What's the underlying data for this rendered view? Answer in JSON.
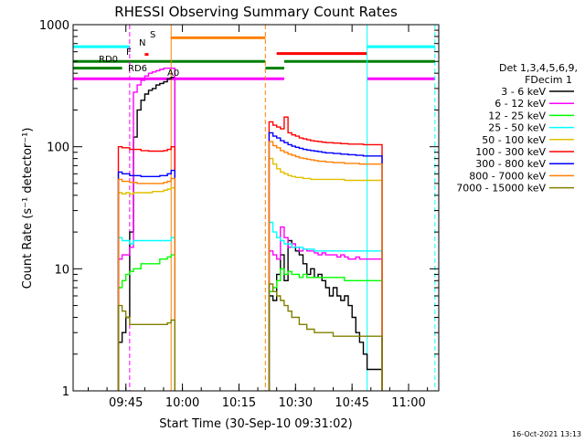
{
  "chart_data": {
    "type": "line",
    "title": "RHESSI Observing Summary Count Rates",
    "xlabel": "Start Time (30-Sep-10 09:31:02)",
    "ylabel": "Count Rate (s⁻¹ detector⁻¹)",
    "y_scale": "log",
    "ylim": [
      1,
      1000
    ],
    "xlim": [
      "09:31",
      "11:08"
    ],
    "x_ticks": [
      "09:45",
      "10:00",
      "10:15",
      "10:30",
      "10:45",
      "11:00"
    ],
    "y_ticks": [
      "1",
      "10",
      "100",
      "1000"
    ],
    "timestamp": "16-Oct-2021 13:13",
    "legend_header": [
      "Det 1,3,4,5,6,9,",
      "FDecim 1"
    ],
    "legend_position": "right",
    "flag_labels": {
      "s": "S",
      "n": "N",
      "f": "F",
      "rd0": "RD0",
      "rd6": "RD6",
      "a0": "A0"
    },
    "flags": [
      {
        "label": "S",
        "color": "#ff8000",
        "value": 780,
        "segments": [
          [
            "09:57",
            "10:22"
          ]
        ]
      },
      {
        "label": "",
        "color": "#ff0000",
        "value": 580,
        "segments": [
          [
            "10:25",
            "10:49"
          ]
        ]
      },
      {
        "label": "N",
        "color": "#00ffff",
        "value": 660,
        "segments": [
          [
            "09:31",
            "09:46"
          ],
          [
            "10:49",
            "11:07"
          ]
        ]
      },
      {
        "label": "F",
        "color": "#ff0000",
        "value": 570,
        "segments": [
          [
            "09:50",
            "09:51"
          ]
        ]
      },
      {
        "label": "RD0",
        "color": "#008000",
        "value": 500,
        "segments": [
          [
            "09:31",
            "10:22"
          ],
          [
            "10:27",
            "11:07"
          ]
        ]
      },
      {
        "label": "RD6",
        "color": "#008000",
        "value": 440,
        "segments": [
          [
            "09:31",
            "09:44"
          ],
          [
            "10:22",
            "10:27"
          ]
        ]
      },
      {
        "label": "A0",
        "color": "#ff00ff",
        "value": 360,
        "segments": [
          [
            "09:31",
            "10:27"
          ],
          [
            "10:49",
            "11:07"
          ]
        ]
      }
    ],
    "vlines": [
      {
        "time": "09:31",
        "color": "#00ffff",
        "dash": false
      },
      {
        "time": "09:46",
        "color": "#ff00ff",
        "dash": true
      },
      {
        "time": "09:57",
        "color": "#ff8000",
        "dash": false
      },
      {
        "time": "10:22",
        "color": "#ff8000",
        "dash": true
      },
      {
        "time": "10:49",
        "color": "#00ffff",
        "dash": false
      },
      {
        "time": "11:07",
        "color": "#00ffff",
        "dash": true
      }
    ],
    "series": [
      {
        "name": "3 - 6 keV",
        "color": "#000000",
        "x": [
          "09:43",
          "09:44",
          "09:45",
          "09:46",
          "09:47",
          "09:48",
          "09:49",
          "09:50",
          "09:51",
          "09:52",
          "09:53",
          "09:54",
          "09:55",
          "09:56",
          "09:57",
          "10:23",
          "10:24",
          "10:25",
          "10:26",
          "10:27",
          "10:28",
          "10:29",
          "10:30",
          "10:31",
          "10:32",
          "10:33",
          "10:34",
          "10:35",
          "10:36",
          "10:37",
          "10:38",
          "10:39",
          "10:40",
          "10:41",
          "10:42",
          "10:43",
          "10:44",
          "10:45",
          "10:46",
          "10:47",
          "10:48",
          "10:49",
          "10:50",
          "10:51",
          "10:52"
        ],
        "y": [
          2.5,
          3.0,
          4.0,
          20,
          120,
          200,
          240,
          270,
          290,
          300,
          320,
          330,
          340,
          360,
          370,
          6,
          5.5,
          9,
          13,
          8,
          17,
          15,
          14,
          13,
          11,
          9,
          10,
          8.5,
          9,
          8,
          7,
          6,
          7,
          6,
          5.5,
          6,
          5,
          4,
          3,
          2.5,
          2.0,
          1.5,
          1.5,
          1.5,
          1.5
        ]
      },
      {
        "name": "6 - 12 keV",
        "color": "#ff00ff",
        "x": [
          "09:43",
          "09:44",
          "09:45",
          "09:46",
          "09:47",
          "09:48",
          "09:49",
          "09:50",
          "09:51",
          "09:52",
          "09:53",
          "09:54",
          "09:55",
          "09:56",
          "09:57",
          "10:23",
          "10:24",
          "10:25",
          "10:26",
          "10:27",
          "10:28",
          "10:29",
          "10:30",
          "10:31",
          "10:32",
          "10:33",
          "10:34",
          "10:35",
          "10:36",
          "10:37",
          "10:38",
          "10:39",
          "10:40",
          "10:41",
          "10:42",
          "10:43",
          "10:44",
          "10:45",
          "10:46",
          "10:47",
          "10:48",
          "10:49",
          "10:50",
          "10:51",
          "10:52"
        ],
        "y": [
          12,
          13,
          13,
          15,
          280,
          320,
          350,
          380,
          400,
          410,
          420,
          430,
          440,
          440,
          440,
          14,
          13,
          12,
          22,
          18,
          15,
          16,
          15,
          14,
          14.5,
          14,
          14,
          13.5,
          13,
          13.5,
          13,
          13,
          13,
          12.5,
          13,
          12.5,
          12,
          12,
          12.5,
          12,
          12,
          12,
          12,
          12,
          12
        ]
      },
      {
        "name": "12 - 25 keV",
        "color": "#00ff00",
        "x": [
          "09:43",
          "09:44",
          "09:45",
          "09:46",
          "09:47",
          "09:48",
          "09:49",
          "09:50",
          "09:51",
          "09:52",
          "09:53",
          "09:54",
          "09:55",
          "09:56",
          "09:57",
          "10:23",
          "10:24",
          "10:25",
          "10:26",
          "10:27",
          "10:28",
          "10:29",
          "10:30",
          "10:31",
          "10:32",
          "10:33",
          "10:34",
          "10:35",
          "10:36",
          "10:37",
          "10:38",
          "10:39",
          "10:40",
          "10:41",
          "10:42",
          "10:43",
          "10:44",
          "10:45",
          "10:46",
          "10:47",
          "10:48",
          "10:49",
          "10:50",
          "10:51",
          "10:52"
        ],
        "y": [
          7,
          8,
          9,
          9.5,
          10,
          10,
          11,
          11,
          11,
          11,
          11,
          12,
          12,
          12.5,
          13,
          6.5,
          7,
          8,
          10,
          9,
          9.5,
          9,
          9,
          8.5,
          9,
          8.5,
          8.5,
          8.5,
          8.5,
          8.5,
          8.5,
          8.5,
          8.5,
          8.5,
          8.5,
          8,
          8,
          8,
          8,
          8,
          8,
          8,
          8,
          8,
          8
        ]
      },
      {
        "name": "25 - 50 keV",
        "color": "#00ffff",
        "x": [
          "09:43",
          "09:44",
          "09:45",
          "09:46",
          "09:47",
          "09:48",
          "09:49",
          "09:50",
          "09:51",
          "09:52",
          "09:53",
          "09:54",
          "09:55",
          "09:56",
          "09:57",
          "10:23",
          "10:24",
          "10:25",
          "10:26",
          "10:27",
          "10:28",
          "10:29",
          "10:30",
          "10:31",
          "10:32",
          "10:33",
          "10:34",
          "10:35",
          "10:36",
          "10:37",
          "10:38",
          "10:39",
          "10:40",
          "10:41",
          "10:42",
          "10:43",
          "10:44",
          "10:45",
          "10:46",
          "10:47",
          "10:48",
          "10:49",
          "10:50",
          "10:51",
          "10:52"
        ],
        "y": [
          18,
          17,
          17,
          16,
          17,
          17,
          17,
          17,
          17,
          17,
          17,
          17,
          17,
          17,
          18,
          24,
          20,
          18,
          17,
          16,
          16,
          15,
          15,
          15,
          14.5,
          14.5,
          14.5,
          14,
          14,
          14,
          14,
          14,
          14,
          14,
          14,
          14,
          14,
          14,
          14,
          14,
          14,
          14,
          14,
          14,
          14
        ]
      },
      {
        "name": "50 - 100 keV",
        "color": "#e0c000",
        "x": [
          "09:43",
          "09:44",
          "09:45",
          "09:46",
          "09:47",
          "09:48",
          "09:49",
          "09:50",
          "09:51",
          "09:52",
          "09:53",
          "09:54",
          "09:55",
          "09:56",
          "09:57",
          "10:23",
          "10:24",
          "10:25",
          "10:26",
          "10:27",
          "10:28",
          "10:29",
          "10:30",
          "10:31",
          "10:32",
          "10:33",
          "10:34",
          "10:35",
          "10:36",
          "10:37",
          "10:38",
          "10:39",
          "10:40",
          "10:41",
          "10:42",
          "10:43",
          "10:44",
          "10:45",
          "10:46",
          "10:47",
          "10:48",
          "10:49",
          "10:50",
          "10:51",
          "10:52"
        ],
        "y": [
          42,
          41,
          42,
          41,
          42,
          42,
          42,
          42,
          42,
          43,
          43,
          43,
          44,
          45,
          46,
          80,
          72,
          66,
          62,
          60,
          58,
          57,
          56,
          56,
          55,
          55,
          54,
          54,
          54,
          54,
          54,
          54,
          54,
          54,
          54,
          53,
          53,
          53,
          53,
          53,
          53,
          53,
          53,
          53,
          53
        ]
      },
      {
        "name": "100 - 300 keV",
        "color": "#ff0000",
        "x": [
          "09:43",
          "09:44",
          "09:45",
          "09:46",
          "09:47",
          "09:48",
          "09:49",
          "09:50",
          "09:51",
          "09:52",
          "09:53",
          "09:54",
          "09:55",
          "09:56",
          "09:57",
          "10:23",
          "10:24",
          "10:25",
          "10:26",
          "10:27",
          "10:28",
          "10:29",
          "10:30",
          "10:31",
          "10:32",
          "10:33",
          "10:34",
          "10:35",
          "10:36",
          "10:37",
          "10:38",
          "10:39",
          "10:40",
          "10:41",
          "10:42",
          "10:43",
          "10:44",
          "10:45",
          "10:46",
          "10:47",
          "10:48",
          "10:49",
          "10:50",
          "10:51",
          "10:52"
        ],
        "y": [
          100,
          98,
          98,
          95,
          95,
          95,
          93,
          93,
          92,
          92,
          92,
          92,
          93,
          95,
          100,
          160,
          150,
          145,
          140,
          175,
          130,
          125,
          122,
          118,
          116,
          114,
          112,
          111,
          110,
          109,
          108,
          108,
          107,
          107,
          106,
          106,
          105,
          105,
          105,
          105,
          104,
          104,
          104,
          104,
          104
        ]
      },
      {
        "name": "300 - 800 keV",
        "color": "#0000ff",
        "x": [
          "09:43",
          "09:44",
          "09:45",
          "09:46",
          "09:47",
          "09:48",
          "09:49",
          "09:50",
          "09:51",
          "09:52",
          "09:53",
          "09:54",
          "09:55",
          "09:56",
          "09:57",
          "10:23",
          "10:24",
          "10:25",
          "10:26",
          "10:27",
          "10:28",
          "10:29",
          "10:30",
          "10:31",
          "10:32",
          "10:33",
          "10:34",
          "10:35",
          "10:36",
          "10:37",
          "10:38",
          "10:39",
          "10:40",
          "10:41",
          "10:42",
          "10:43",
          "10:44",
          "10:45",
          "10:46",
          "10:47",
          "10:48",
          "10:49",
          "10:50",
          "10:51",
          "10:52"
        ],
        "y": [
          62,
          60,
          60,
          58,
          58,
          58,
          57,
          57,
          57,
          57,
          57,
          58,
          58,
          60,
          64,
          130,
          122,
          118,
          112,
          108,
          104,
          101,
          99,
          97,
          95,
          94,
          93,
          92,
          91,
          90,
          89,
          89,
          88,
          88,
          87,
          87,
          86,
          86,
          85,
          85,
          84,
          84,
          84,
          84,
          84
        ]
      },
      {
        "name": "800 - 7000 keV",
        "color": "#ff8000",
        "x": [
          "09:43",
          "09:44",
          "09:45",
          "09:46",
          "09:47",
          "09:48",
          "09:49",
          "09:50",
          "09:51",
          "09:52",
          "09:53",
          "09:54",
          "09:55",
          "09:56",
          "09:57",
          "10:23",
          "10:24",
          "10:25",
          "10:26",
          "10:27",
          "10:28",
          "10:29",
          "10:30",
          "10:31",
          "10:32",
          "10:33",
          "10:34",
          "10:35",
          "10:36",
          "10:37",
          "10:38",
          "10:39",
          "10:40",
          "10:41",
          "10:42",
          "10:43",
          "10:44",
          "10:45",
          "10:46",
          "10:47",
          "10:48",
          "10:49",
          "10:50",
          "10:51",
          "10:52"
        ],
        "y": [
          54,
          52,
          52,
          51,
          51,
          50,
          50,
          50,
          50,
          50,
          50,
          50,
          51,
          52,
          55,
          110,
          102,
          98,
          93,
          90,
          87,
          85,
          83,
          81,
          80,
          79,
          78,
          77,
          76,
          76,
          75,
          75,
          74,
          74,
          74,
          73,
          73,
          73,
          73,
          72,
          72,
          72,
          72,
          72,
          72
        ]
      },
      {
        "name": "7000 - 15000 keV",
        "color": "#808000",
        "x": [
          "09:43",
          "09:44",
          "09:45",
          "09:46",
          "09:47",
          "09:48",
          "09:49",
          "09:50",
          "09:51",
          "09:52",
          "09:53",
          "09:54",
          "09:55",
          "09:56",
          "09:57",
          "10:23",
          "10:24",
          "10:25",
          "10:26",
          "10:27",
          "10:28",
          "10:29",
          "10:30",
          "10:31",
          "10:32",
          "10:33",
          "10:34",
          "10:35",
          "10:36",
          "10:37",
          "10:38",
          "10:39",
          "10:40",
          "10:41",
          "10:42",
          "10:43",
          "10:44",
          "10:45",
          "10:46",
          "10:47",
          "10:48",
          "10:49",
          "10:50",
          "10:51",
          "10:52"
        ],
        "y": [
          5,
          4.5,
          4,
          3.5,
          3.5,
          3.5,
          3.5,
          3.5,
          3.5,
          3.5,
          3.5,
          3.5,
          3.5,
          3.6,
          3.8,
          7.5,
          6.5,
          6,
          5.5,
          5,
          4.5,
          4,
          4,
          3.5,
          3.5,
          3.2,
          3.2,
          3,
          3,
          3,
          3,
          3,
          2.8,
          2.8,
          2.8,
          2.8,
          2.8,
          2.8,
          2.8,
          2.8,
          2.8,
          2.8,
          2.8,
          2.8,
          2.8
        ]
      }
    ]
  }
}
